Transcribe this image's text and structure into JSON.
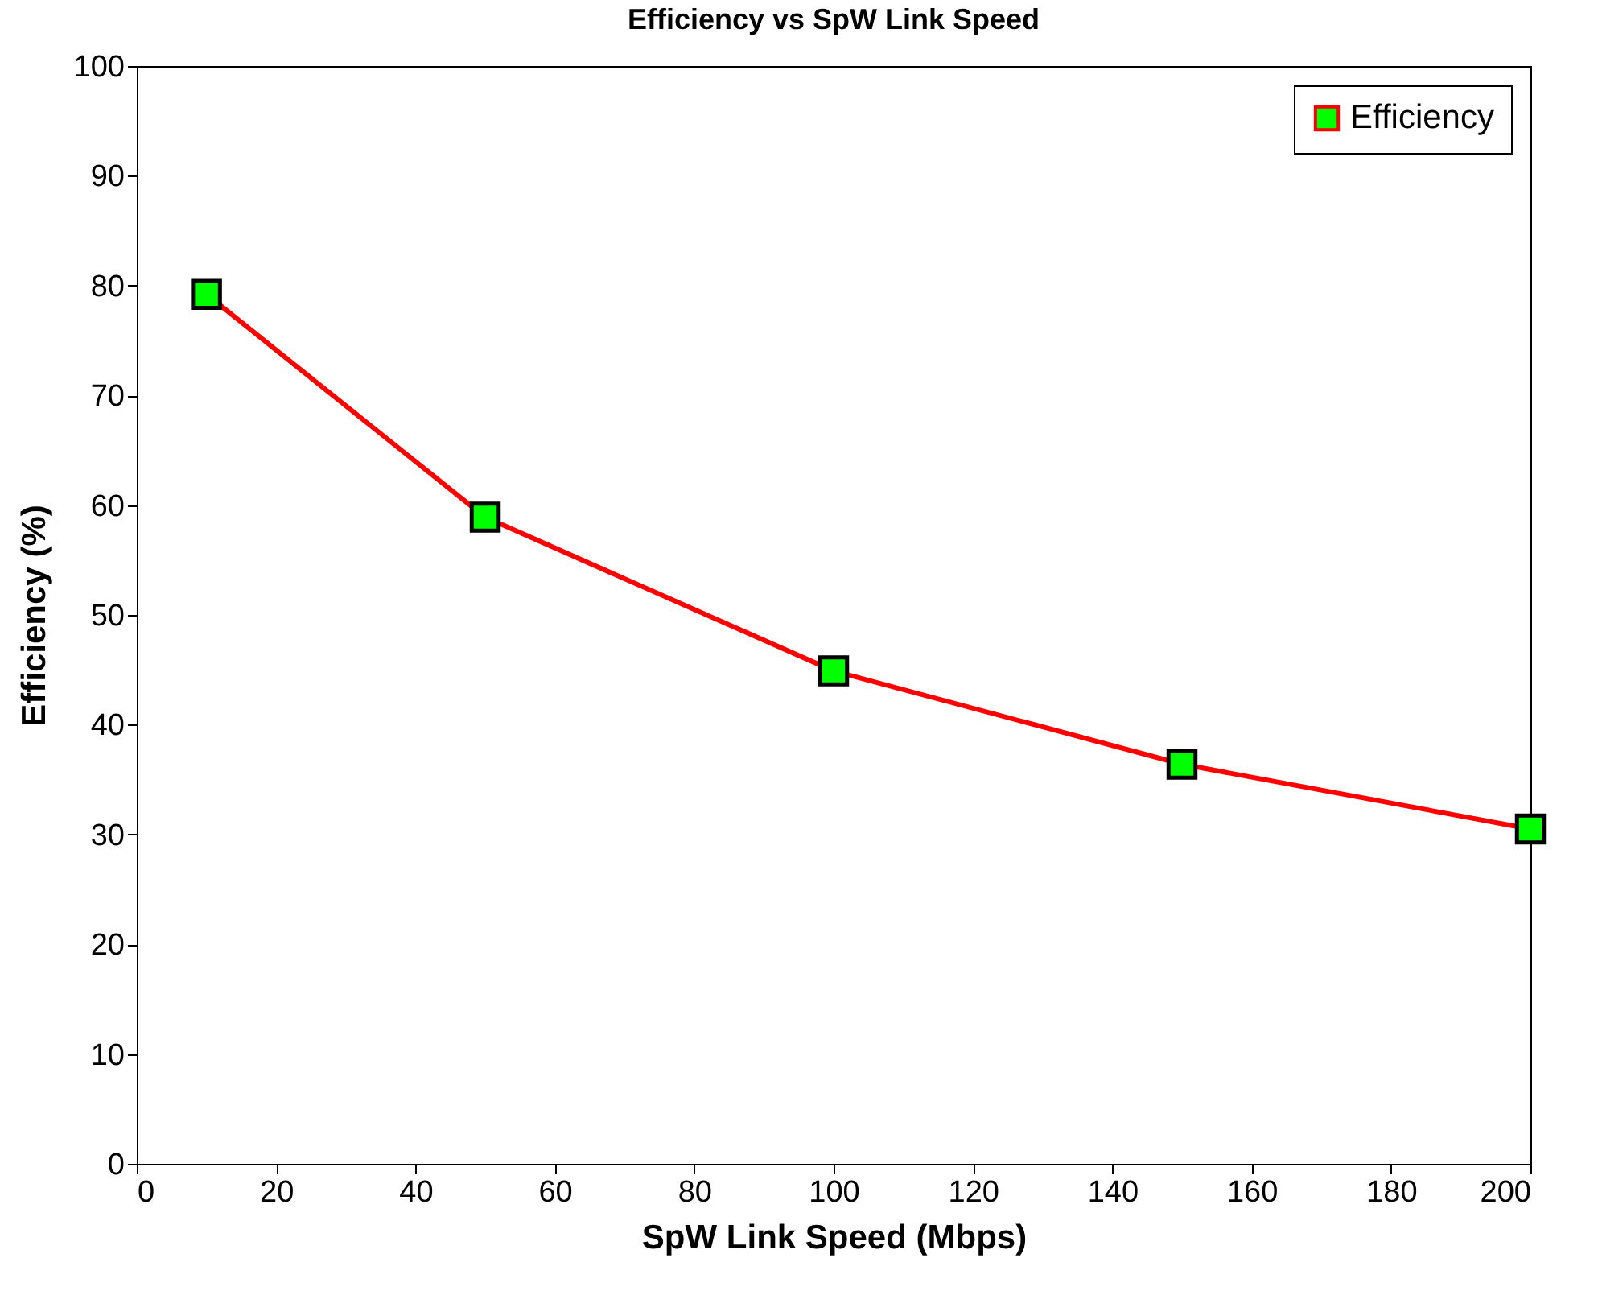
{
  "chart_data": {
    "type": "line",
    "title": "Efficiency vs SpW Link Speed",
    "xlabel": "SpW Link Speed (Mbps)",
    "ylabel": "Efficiency (%)",
    "x": [
      10,
      50,
      100,
      150,
      200
    ],
    "series": [
      {
        "name": "Efficiency",
        "color": "#ff0000",
        "values": [
          79.2,
          58.9,
          44.9,
          36.4,
          30.5
        ]
      }
    ],
    "xlim": [
      0,
      200
    ],
    "xticks": [
      0,
      20,
      40,
      60,
      80,
      100,
      120,
      140,
      160,
      180,
      200
    ],
    "ylim": [
      0,
      100
    ],
    "yticks": [
      0,
      10,
      20,
      30,
      40,
      50,
      60,
      70,
      80,
      90,
      100
    ],
    "grid": false,
    "legend": "top right",
    "marker": "square",
    "line_style": "solid"
  }
}
